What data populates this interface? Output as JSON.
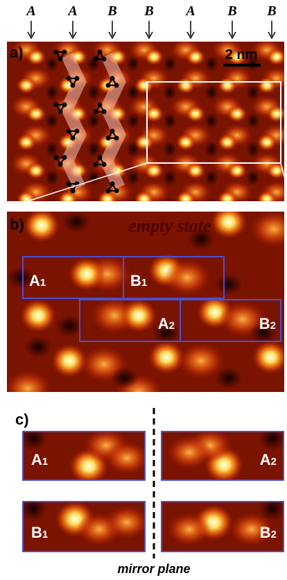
{
  "panel_a": {
    "label": "a)",
    "scale_bar": "2 nm",
    "columns": [
      "A",
      "A",
      "B",
      "B",
      "A",
      "B",
      "B"
    ]
  },
  "panel_b": {
    "label": "b)",
    "caption": "empty state",
    "boxes": [
      {
        "letter": "A",
        "sub": "1"
      },
      {
        "letter": "B",
        "sub": "1"
      },
      {
        "letter": "A",
        "sub": "2"
      },
      {
        "letter": "B",
        "sub": "2"
      }
    ]
  },
  "panel_c": {
    "label": "c)",
    "boxes": [
      {
        "letter": "A",
        "sub": "1"
      },
      {
        "letter": "A",
        "sub": "2"
      },
      {
        "letter": "B",
        "sub": "1"
      },
      {
        "letter": "B",
        "sub": "2"
      }
    ],
    "axis_label": "mirror plane"
  }
}
